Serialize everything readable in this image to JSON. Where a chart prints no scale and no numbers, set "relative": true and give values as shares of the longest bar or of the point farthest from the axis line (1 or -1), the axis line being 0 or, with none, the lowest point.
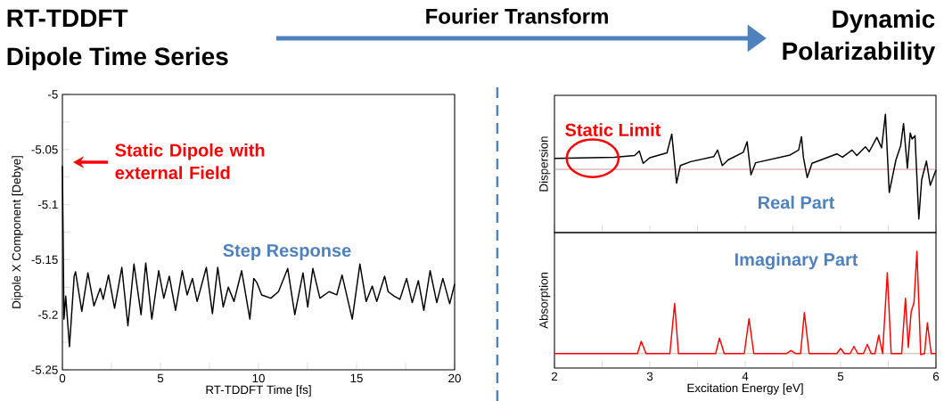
{
  "chart_data": [
    {
      "type": "line",
      "title": "RT-TDDFT",
      "subtitle": "Dipole Time Series",
      "xlabel": "RT-TDDFT Time [fs]",
      "ylabel": "Dipole X Component [Debye]",
      "color": "#000000",
      "x": [
        0,
        0.08,
        0.17,
        0.36,
        0.6,
        0.67,
        0.99,
        1.3,
        1.61,
        1.93,
        2.08,
        2.35,
        2.66,
        3.03,
        3.34,
        3.65,
        4.01,
        4.25,
        4.56,
        4.91,
        5.17,
        5.45,
        5.77,
        6.11,
        6.36,
        6.63,
        6.87,
        7.34,
        7.65,
        7.92,
        8.2,
        8.46,
        8.75,
        9.14,
        9.56,
        9.76,
        9.92,
        10.16,
        10.63,
        11.02,
        11.49,
        11.85,
        12.27,
        12.51,
        12.77,
        13.13,
        13.6,
        13.99,
        14.26,
        14.78,
        15.17,
        15.49,
        15.8,
        16.03,
        16.43,
        16.61,
        16.9,
        17.21,
        17.55,
        17.84,
        18.15,
        18.43,
        18.75,
        19.09,
        19.4,
        19.75,
        20
      ],
      "values": [
        -5.065,
        -5.204,
        -5.183,
        -5.229,
        -5.165,
        -5.161,
        -5.197,
        -5.162,
        -5.192,
        -5.176,
        -5.186,
        -5.164,
        -5.194,
        -5.157,
        -5.21,
        -5.154,
        -5.2,
        -5.153,
        -5.204,
        -5.16,
        -5.185,
        -5.165,
        -5.196,
        -5.16,
        -5.182,
        -5.167,
        -5.188,
        -5.157,
        -5.199,
        -5.157,
        -5.193,
        -5.175,
        -5.188,
        -5.16,
        -5.204,
        -5.167,
        -5.171,
        -5.182,
        -5.185,
        -5.179,
        -5.158,
        -5.2,
        -5.162,
        -5.193,
        -5.158,
        -5.185,
        -5.179,
        -5.182,
        -5.164,
        -5.204,
        -5.154,
        -5.188,
        -5.174,
        -5.188,
        -5.165,
        -5.179,
        -5.183,
        -5.186,
        -5.167,
        -5.189,
        -5.169,
        -5.196,
        -5.16,
        -5.189,
        -5.167,
        -5.19,
        -5.172
      ],
      "xlim": [
        0,
        20
      ],
      "xticks": [
        0,
        {
          "value": 2.5,
          "label": null
        },
        5,
        {
          "value": 7.5,
          "label": null
        },
        10,
        {
          "value": 12.5,
          "label": null
        },
        15,
        {
          "value": 17.5,
          "label": null
        },
        20
      ],
      "ylim": [
        -5.25,
        -5
      ],
      "yticks": [
        -5.25,
        {
          "value": -5.225,
          "label": null
        },
        -5.2,
        {
          "value": -5.175,
          "label": null
        },
        -5.15,
        {
          "value": -5.125,
          "label": null
        },
        -5.1,
        {
          "value": -5.075,
          "label": null
        },
        -5.05,
        {
          "value": -5.025,
          "label": null
        },
        -5
      ],
      "annotations": [
        "Static Dipole with external Field",
        "Step Response"
      ]
    },
    {
      "type": "line",
      "title": "Dynamic Polarizability",
      "ylabel": "Dispersion",
      "relative": true,
      "color": "#000000",
      "x": [
        2,
        2.63,
        2.84,
        2.89,
        2.93,
        3,
        3.18,
        3.23,
        3.26,
        3.28,
        3.32,
        3.43,
        3.67,
        3.71,
        3.76,
        3.82,
        3.98,
        4.02,
        4.06,
        4.11,
        4.47,
        4.56,
        4.59,
        4.61,
        4.65,
        4.7,
        4.96,
        5.02,
        5.12,
        5.17,
        5.26,
        5.3,
        5.38,
        5.43,
        5.47,
        5.51,
        5.58,
        5.63,
        5.66,
        5.7,
        5.73,
        5.75,
        5.78,
        5.82,
        5.85,
        5.9,
        5.94,
        6
      ],
      "values": [
        0.2,
        0.22,
        0.25,
        0.33,
        0.11,
        0.21,
        0.3,
        0.64,
        0.12,
        -0.25,
        0.07,
        0.14,
        0.23,
        0.35,
        0.07,
        0.17,
        0.31,
        0.5,
        -0.1,
        0.12,
        0.26,
        0.35,
        0.59,
        0.22,
        -0.15,
        0.11,
        0.28,
        0.22,
        0.35,
        0.25,
        0.41,
        0.32,
        0.58,
        0.39,
        1,
        -0.42,
        0.17,
        0.43,
        0.83,
        0.02,
        0.66,
        0.55,
        0.61,
        -0.9,
        -0.19,
        0.15,
        -0.29,
        -0.01
      ],
      "xlim": [
        2,
        6
      ],
      "xticks": [
        2,
        {
          "value": 2.5,
          "label": null
        },
        3,
        {
          "value": 3.5,
          "label": null
        },
        4,
        {
          "value": 4.5,
          "label": null
        },
        5,
        {
          "value": 5.5,
          "label": null
        },
        6
      ],
      "tick_labels": false,
      "ref_lines": [
        {
          "axis": "y",
          "value": 0,
          "color": "#c87878"
        }
      ],
      "annotations": [
        {
          "text": "Static Limit",
          "x": 2.4,
          "y": 0.2
        },
        "Real Part",
        "Fourier Transform"
      ]
    },
    {
      "type": "line",
      "xlabel": "Excitation Energy [eV]",
      "ylabel": "Absorption",
      "relative": true,
      "color": "#ff0000",
      "x": [
        2,
        2.87,
        2.91,
        2.96,
        3.21,
        3.26,
        3.3,
        3.69,
        3.73,
        3.78,
        3.99,
        4.04,
        4.09,
        4.43,
        4.48,
        4.53,
        4.58,
        4.62,
        4.67,
        4.96,
        5,
        5.04,
        5.1,
        5.14,
        5.18,
        5.24,
        5.28,
        5.32,
        5.36,
        5.4,
        5.44,
        5.49,
        5.53,
        5.64,
        5.68,
        5.71,
        5.74,
        5.77,
        5.8,
        5.84,
        5.88,
        5.91,
        5.95,
        6
      ],
      "values": [
        0,
        0,
        0.12,
        0,
        0,
        0.49,
        0,
        0,
        0.15,
        0,
        0,
        0.34,
        0,
        0,
        0.03,
        0,
        0,
        0.4,
        0,
        0,
        0.05,
        0,
        0,
        0.07,
        0,
        0,
        0.09,
        0,
        0,
        0.18,
        0,
        0.79,
        0,
        0,
        0.54,
        0.06,
        0.41,
        0.5,
        1,
        -0.01,
        0,
        0.3,
        0,
        0
      ],
      "xlim": [
        2,
        6
      ],
      "xticks": [
        2,
        {
          "value": 2.5,
          "label": null
        },
        3,
        {
          "value": 3.5,
          "label": null
        },
        4,
        {
          "value": 4.5,
          "label": null
        },
        5,
        {
          "value": 5.5,
          "label": null
        },
        6
      ],
      "tick_labels": "x",
      "ref_lines": [
        {
          "axis": "y",
          "value": 0,
          "color": "#b4a0a0"
        }
      ],
      "annotations": [
        "Imaginary Part"
      ]
    }
  ]
}
